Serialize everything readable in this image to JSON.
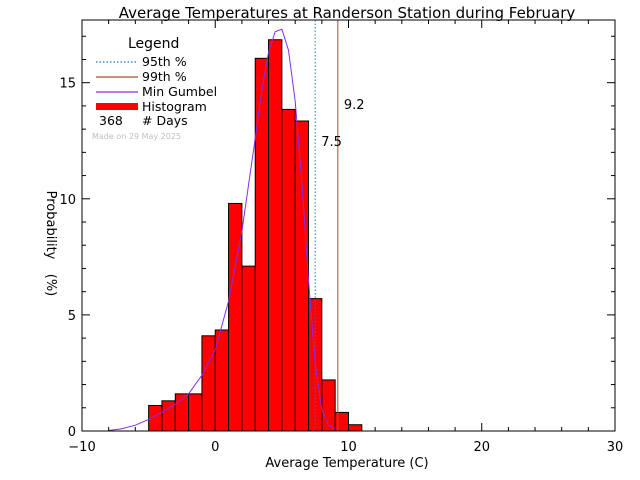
{
  "chart_data": {
    "type": "bar",
    "title": "Average Temperatures at Randerson Station during February",
    "xlabel": "Average Temperature (C)",
    "ylabel_line1": "Probability",
    "ylabel_line2": "(%)",
    "xlim": [
      -10,
      30
    ],
    "ylim": [
      0,
      17.7
    ],
    "x_ticks": [
      -10,
      0,
      10,
      20,
      30
    ],
    "y_ticks": [
      0,
      5,
      10,
      15
    ],
    "grid": false,
    "legend": {
      "title": "Legend",
      "placement": "top-left",
      "p95_label": "95th %",
      "p99_label": "99th %",
      "gumbel_label": "Min Gumbel",
      "histogram_label": "Histogram",
      "days_count": "368",
      "days_label": "# Days",
      "made_on": "Made on 29 May 2025"
    },
    "histogram": {
      "bin_width": 1,
      "bins": [
        {
          "x0": -5,
          "value": 1.1
        },
        {
          "x0": -4,
          "value": 1.3
        },
        {
          "x0": -3,
          "value": 1.6
        },
        {
          "x0": -2,
          "value": 1.6
        },
        {
          "x0": -1,
          "value": 4.1
        },
        {
          "x0": 0,
          "value": 4.35
        },
        {
          "x0": 1,
          "value": 9.8
        },
        {
          "x0": 2,
          "value": 7.1
        },
        {
          "x0": 3,
          "value": 16.05
        },
        {
          "x0": 4,
          "value": 16.85
        },
        {
          "x0": 5,
          "value": 13.85
        },
        {
          "x0": 6,
          "value": 13.35
        },
        {
          "x0": 7,
          "value": 5.7
        },
        {
          "x0": 8,
          "value": 2.2
        },
        {
          "x0": 9,
          "value": 0.8
        },
        {
          "x0": 10,
          "value": 0.27
        }
      ]
    },
    "percentiles": {
      "p95": {
        "value": 7.5,
        "label": "7.5"
      },
      "p99": {
        "value": 9.2,
        "label": "9.2"
      }
    },
    "gumbel_curve": {
      "x": [
        -8,
        -7,
        -6,
        -5,
        -4,
        -3,
        -2,
        -1,
        0,
        1,
        2,
        3,
        3.5,
        4,
        4.5,
        5,
        5.5,
        6,
        6.5,
        7,
        7.5,
        8,
        8.5,
        9
      ],
      "y": [
        0.02,
        0.1,
        0.25,
        0.5,
        0.8,
        1.15,
        1.6,
        2.4,
        3.5,
        5.6,
        8.6,
        12.6,
        14.7,
        16.3,
        17.2,
        17.3,
        16.4,
        14.2,
        10.7,
        6.5,
        2.9,
        0.9,
        0.25,
        0.08
      ]
    },
    "colors": {
      "histogram": "#ff0000",
      "p95": "#1f77d0",
      "p99": "#a0522d",
      "gumbel": "#8a2be2",
      "made_on": "#c0c0c0"
    }
  }
}
